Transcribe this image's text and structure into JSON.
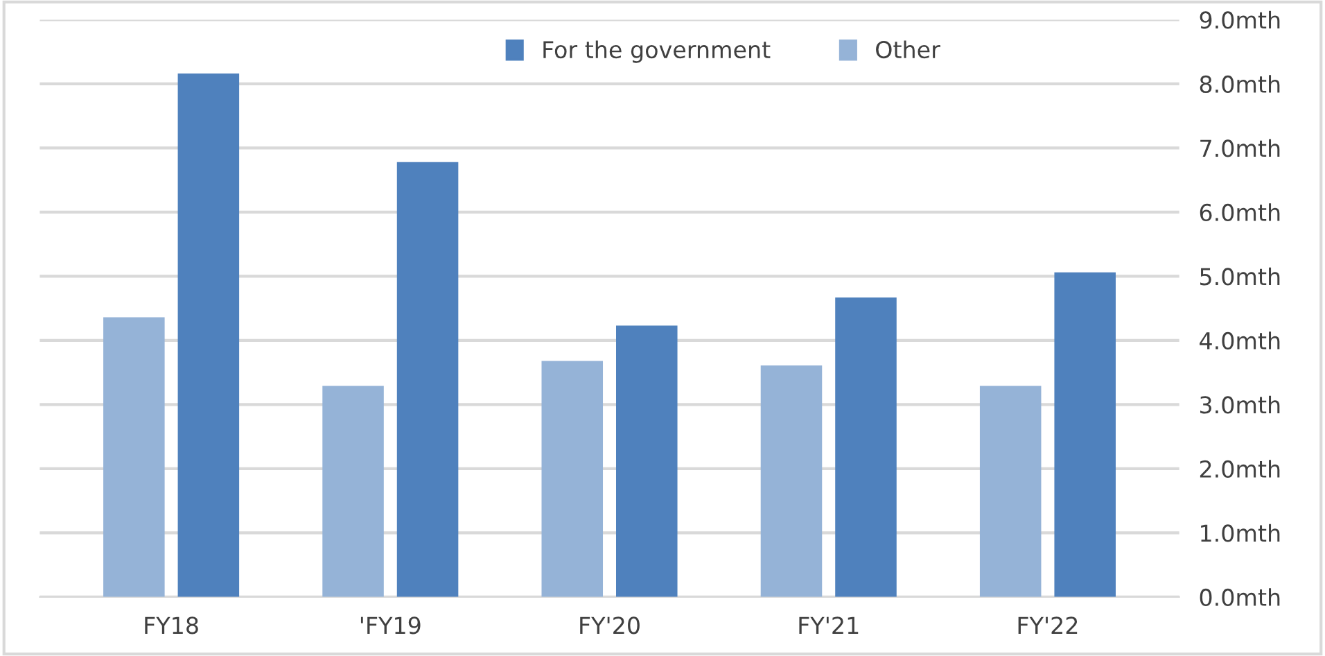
{
  "chart_data": {
    "type": "bar",
    "categories": [
      "FY18",
      "'FY19",
      "FY'20",
      "FY'21",
      "FY'22"
    ],
    "series": [
      {
        "name": "Other",
        "color": "#95b3d7",
        "values": [
          4.36,
          3.29,
          3.68,
          3.61,
          3.29
        ]
      },
      {
        "name": "For the government",
        "color": "#4f81bd",
        "values": [
          8.16,
          6.78,
          4.23,
          4.67,
          5.06
        ]
      }
    ],
    "ylim": [
      0,
      9
    ],
    "yticks": [
      {
        "value": 0,
        "label": "0.0mth"
      },
      {
        "value": 1,
        "label": "1.0mth"
      },
      {
        "value": 2,
        "label": "2.0mth"
      },
      {
        "value": 3,
        "label": "3.0mth"
      },
      {
        "value": 4,
        "label": "4.0mth"
      },
      {
        "value": 5,
        "label": "5.0mth"
      },
      {
        "value": 6,
        "label": "6.0mth"
      },
      {
        "value": 7,
        "label": "7.0mth"
      },
      {
        "value": 8,
        "label": "8.0mth"
      },
      {
        "value": 9,
        "label": "9.0mth"
      }
    ],
    "grid": "y",
    "legend": "top"
  }
}
